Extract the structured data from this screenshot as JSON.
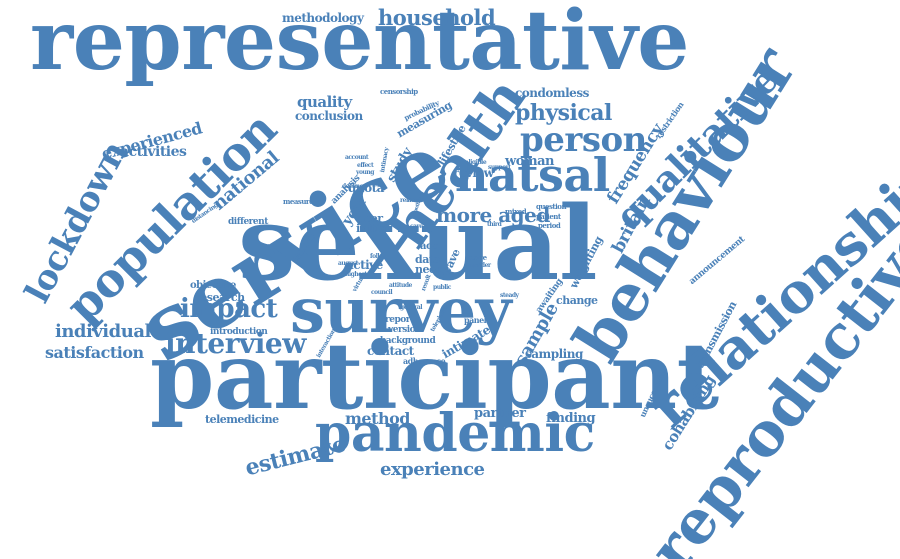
{
  "word_cloud": {
    "color": "#4a81b8",
    "words": [
      {
        "text": "representative",
        "weight": 100,
        "orientation": "horizontal"
      },
      {
        "text": "sexual",
        "weight": 96,
        "orientation": "horizontal"
      },
      {
        "text": "participant",
        "weight": 92,
        "orientation": "horizontal"
      },
      {
        "text": "service",
        "weight": 88,
        "orientation": "rotated"
      },
      {
        "text": "reproductive",
        "weight": 70,
        "orientation": "rotated"
      },
      {
        "text": "behaviour",
        "weight": 70,
        "orientation": "rotated"
      },
      {
        "text": "relationship",
        "weight": 66,
        "orientation": "rotated"
      },
      {
        "text": "survey",
        "weight": 66,
        "orientation": "horizontal"
      },
      {
        "text": "health",
        "weight": 60,
        "orientation": "rotated"
      },
      {
        "text": "population",
        "weight": 58,
        "orientation": "rotated"
      },
      {
        "text": "pandemic",
        "weight": 54,
        "orientation": "horizontal"
      },
      {
        "text": "natsal",
        "weight": 50,
        "orientation": "horizontal"
      },
      {
        "text": "lockdown",
        "weight": 44,
        "orientation": "rotated"
      },
      {
        "text": "qualitative",
        "weight": 40,
        "orientation": "rotated"
      },
      {
        "text": "person",
        "weight": 36,
        "orientation": "horizontal"
      },
      {
        "text": "interview",
        "weight": 32,
        "orientation": "horizontal"
      },
      {
        "text": "impact",
        "weight": 30,
        "orientation": "horizontal"
      },
      {
        "text": "physical",
        "weight": 26,
        "orientation": "horizontal"
      },
      {
        "text": "estimate",
        "weight": 26,
        "orientation": "rotated"
      },
      {
        "text": "household",
        "weight": 24,
        "orientation": "horizontal"
      },
      {
        "text": "more aged",
        "weight": 24,
        "orientation": "horizontal"
      },
      {
        "text": "sample",
        "weight": 22,
        "orientation": "rotated"
      },
      {
        "text": "experience",
        "weight": 22,
        "orientation": "horizontal"
      },
      {
        "text": "individual",
        "weight": 20,
        "orientation": "horizontal"
      },
      {
        "text": "satisfaction",
        "weight": 18,
        "orientation": "horizontal"
      },
      {
        "text": "national",
        "weight": 20,
        "orientation": "rotated"
      },
      {
        "text": "frequency",
        "weight": 20,
        "orientation": "rotated"
      },
      {
        "text": "britain",
        "weight": 20,
        "orientation": "rotated"
      },
      {
        "text": "experienced",
        "weight": 18,
        "orientation": "rotated"
      },
      {
        "text": "method",
        "weight": 18,
        "orientation": "horizontal"
      },
      {
        "text": "cohabiting",
        "weight": 18,
        "orientation": "rotated"
      },
      {
        "text": "quality",
        "weight": 18,
        "orientation": "horizontal"
      },
      {
        "text": "activities",
        "weight": 16,
        "orientation": "horizontal"
      },
      {
        "text": "year",
        "weight": 16,
        "orientation": "rotated"
      },
      {
        "text": "study",
        "weight": 16,
        "orientation": "rotated"
      },
      {
        "text": "woman",
        "weight": 16,
        "orientation": "horizontal"
      },
      {
        "text": "methodology",
        "weight": 14,
        "orientation": "horizontal"
      },
      {
        "text": "conclusion",
        "weight": 14,
        "orientation": "horizontal"
      },
      {
        "text": "condomless",
        "weight": 14,
        "orientation": "horizontal"
      },
      {
        "text": "partner",
        "weight": 14,
        "orientation": "horizontal"
      },
      {
        "text": "finding",
        "weight": 14,
        "orientation": "horizontal"
      },
      {
        "text": "contact",
        "weight": 14,
        "orientation": "horizontal"
      },
      {
        "text": "sampling",
        "weight": 14,
        "orientation": "horizontal"
      },
      {
        "text": "review",
        "weight": 14,
        "orientation": "horizontal"
      },
      {
        "text": "quota",
        "weight": 14,
        "orientation": "horizontal"
      },
      {
        "text": "intimate",
        "weight": 14,
        "orientation": "rotated"
      },
      {
        "text": "active",
        "weight": 14,
        "orientation": "horizontal"
      },
      {
        "text": "research",
        "weight": 13,
        "orientation": "horizontal"
      },
      {
        "text": "telemedicine",
        "weight": 13,
        "orientation": "horizontal"
      },
      {
        "text": "change",
        "weight": 13,
        "orientation": "horizontal"
      },
      {
        "text": "transmission",
        "weight": 13,
        "orientation": "rotated"
      },
      {
        "text": "lifestyle",
        "weight": 12,
        "orientation": "rotated"
      },
      {
        "text": "measuring",
        "weight": 12,
        "orientation": "rotated"
      },
      {
        "text": "weighting",
        "weight": 12,
        "orientation": "rotated"
      },
      {
        "text": "data",
        "weight": 12,
        "orientation": "horizontal"
      },
      {
        "text": "need",
        "weight": 12,
        "orientation": "horizontal"
      },
      {
        "text": "peer",
        "weight": 12,
        "orientation": "horizontal"
      },
      {
        "text": "initial",
        "weight": 12,
        "orientation": "horizontal"
      },
      {
        "text": "wave",
        "weight": 12,
        "orientation": "rotated"
      },
      {
        "text": "month",
        "weight": 11,
        "orientation": "rotated"
      },
      {
        "text": "analysis",
        "weight": 11,
        "orientation": "rotated"
      },
      {
        "text": "objective",
        "weight": 11,
        "orientation": "horizontal"
      },
      {
        "text": "different",
        "weight": 10,
        "orientation": "horizontal"
      },
      {
        "text": "acc",
        "weight": 11,
        "orientation": "horizontal"
      },
      {
        "text": "background",
        "weight": 10,
        "orientation": "horizontal"
      },
      {
        "text": "report",
        "weight": 10,
        "orientation": "horizontal"
      },
      {
        "text": "version",
        "weight": 10,
        "orientation": "horizontal"
      },
      {
        "text": "introduction",
        "weight": 10,
        "orientation": "horizontal"
      },
      {
        "text": "announcement",
        "weight": 10,
        "orientation": "rotated"
      },
      {
        "text": "unsuccessful",
        "weight": 10,
        "orientation": "rotated"
      },
      {
        "text": "restriction",
        "weight": 10,
        "orientation": "rotated"
      },
      {
        "text": "awaiting",
        "weight": 10,
        "orientation": "rotated"
      },
      {
        "text": "adherence",
        "weight": 10,
        "orientation": "horizontal"
      },
      {
        "text": "panel",
        "weight": 10,
        "orientation": "horizontal"
      },
      {
        "text": "censorship",
        "weight": 9,
        "orientation": "horizontal"
      },
      {
        "text": "probability",
        "weight": 9,
        "orientation": "rotated"
      },
      {
        "text": "stage",
        "weight": 9,
        "orientation": "horizontal"
      },
      {
        "text": "mixed",
        "weight": 9,
        "orientation": "horizontal"
      },
      {
        "text": "patient",
        "weight": 9,
        "orientation": "horizontal"
      },
      {
        "text": "period",
        "weight": 9,
        "orientation": "horizontal"
      },
      {
        "text": "question",
        "weight": 9,
        "orientation": "horizontal"
      },
      {
        "text": "measure",
        "weight": 9,
        "orientation": "horizontal"
      },
      {
        "text": "distancing",
        "weight": 8,
        "orientation": "rotated"
      },
      {
        "text": "account",
        "weight": 8,
        "orientation": "horizontal"
      },
      {
        "text": "decline",
        "weight": 8,
        "orientation": "horizontal"
      },
      {
        "text": "follow",
        "weight": 8,
        "orientation": "horizontal"
      },
      {
        "text": "virtual",
        "weight": 8,
        "orientation": "rotated"
      },
      {
        "text": "august",
        "weight": 8,
        "orientation": "horizontal"
      },
      {
        "text": "highest",
        "weight": 8,
        "orientation": "horizontal"
      },
      {
        "text": "interaction",
        "weight": 8,
        "orientation": "rotated"
      },
      {
        "text": "telephone",
        "weight": 8,
        "orientation": "rotated"
      },
      {
        "text": "general",
        "weight": 8,
        "orientation": "horizontal"
      },
      {
        "text": "eligible",
        "weight": 7,
        "orientation": "horizontal"
      },
      {
        "text": "support",
        "weight": 7,
        "orientation": "horizontal"
      },
      {
        "text": "intimacy",
        "weight": 7,
        "orientation": "rotated"
      },
      {
        "text": "related",
        "weight": 7,
        "orientation": "horizontal"
      },
      {
        "text": "care",
        "weight": 7,
        "orientation": "horizontal"
      },
      {
        "text": "third",
        "weight": 7,
        "orientation": "horizontal"
      },
      {
        "text": "gender",
        "weight": 7,
        "orientation": "horizontal"
      },
      {
        "text": "steady",
        "weight": 7,
        "orientation": "horizontal"
      },
      {
        "text": "council",
        "weight": 7,
        "orientation": "horizontal"
      },
      {
        "text": "attitude",
        "weight": 7,
        "orientation": "horizontal"
      },
      {
        "text": "effect",
        "weight": 7,
        "orientation": "horizontal"
      },
      {
        "text": "young",
        "weight": 7,
        "orientation": "horizontal"
      },
      {
        "text": "public",
        "weight": 7,
        "orientation": "horizontal"
      },
      {
        "text": "month",
        "weight": 7,
        "orientation": "rotated"
      },
      {
        "text": "result",
        "weight": 7,
        "orientation": "rotated"
      }
    ]
  }
}
